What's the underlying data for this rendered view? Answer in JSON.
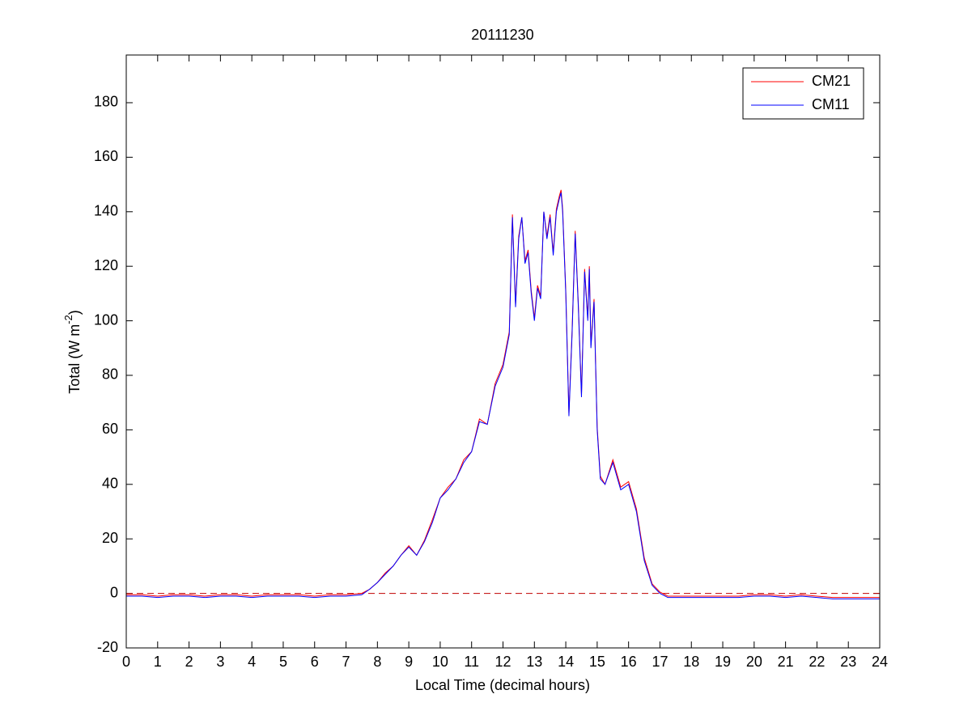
{
  "chart_data": {
    "type": "line",
    "title": "20111230",
    "xlabel": "Local Time (decimal hours)",
    "ylabel": [
      "Total (W m",
      "-2",
      ")"
    ],
    "x": [
      0,
      0.5,
      1,
      1.5,
      2,
      2.5,
      3,
      3.5,
      4,
      4.5,
      5,
      5.5,
      6,
      6.5,
      7,
      7.5,
      7.75,
      8,
      8.25,
      8.5,
      8.75,
      9,
      9.25,
      9.5,
      9.75,
      10,
      10.25,
      10.5,
      10.75,
      11,
      11.25,
      11.5,
      11.75,
      12,
      12.2,
      12.3,
      12.4,
      12.5,
      12.6,
      12.7,
      12.8,
      12.9,
      13,
      13.1,
      13.2,
      13.3,
      13.4,
      13.5,
      13.6,
      13.7,
      13.8,
      13.85,
      13.9,
      14,
      14.1,
      14.2,
      14.3,
      14.4,
      14.5,
      14.6,
      14.7,
      14.75,
      14.8,
      14.9,
      15,
      15.1,
      15.25,
      15.5,
      15.75,
      16,
      16.25,
      16.5,
      16.75,
      17,
      17.25,
      17.5,
      18,
      18.5,
      19,
      19.5,
      20,
      20.5,
      21,
      21.5,
      22,
      22.5,
      23,
      23.5,
      24
    ],
    "series": [
      {
        "name": "CM21",
        "color": "#ff0000",
        "values": [
          -0.5,
          -0.5,
          -1,
          -0.5,
          -0.5,
          -1,
          -0.5,
          -0.5,
          -1,
          -0.5,
          -0.5,
          -0.5,
          -1,
          -0.5,
          -0.5,
          0,
          1.5,
          4,
          7.5,
          10,
          14,
          17.5,
          14,
          19.5,
          27,
          35,
          39,
          42,
          49,
          52,
          64,
          62,
          77,
          84,
          96,
          139,
          106,
          131,
          138,
          122,
          126,
          111,
          101,
          113,
          109,
          140,
          131,
          139,
          125,
          141,
          146,
          148,
          141,
          111,
          66,
          96,
          133,
          106,
          73,
          119,
          101,
          120,
          91,
          108,
          61,
          43,
          40,
          49,
          39,
          41,
          31,
          13,
          3.5,
          0.5,
          -1,
          -1,
          -1,
          -1,
          -1,
          -1,
          -0.5,
          -0.5,
          -1,
          -0.5,
          -1,
          -1.5,
          -1.5,
          -1.5,
          -1.5
        ]
      },
      {
        "name": "CM11",
        "color": "#0000ff",
        "values": [
          -1,
          -1,
          -1.5,
          -1,
          -1,
          -1.5,
          -1,
          -1,
          -1.5,
          -1,
          -1,
          -1,
          -1.5,
          -1,
          -1,
          -0.5,
          1.5,
          4,
          7,
          10,
          14,
          17,
          14,
          19,
          26,
          35,
          38,
          42,
          48,
          52,
          63,
          62,
          76,
          83,
          95,
          138,
          105,
          130,
          138,
          121,
          125,
          110,
          100,
          112,
          108,
          140,
          130,
          138,
          124,
          140,
          145,
          147,
          140,
          110,
          65,
          95,
          132,
          105,
          72,
          118,
          100,
          119,
          90,
          107,
          60,
          42,
          40,
          48,
          38,
          40,
          30,
          12,
          3,
          0,
          -1.5,
          -1.5,
          -1.5,
          -1.5,
          -1.5,
          -1.5,
          -1,
          -1,
          -1.5,
          -1,
          -1.5,
          -2,
          -2,
          -2,
          -2
        ]
      }
    ],
    "xlim": [
      0,
      24
    ],
    "xticks": [
      0,
      1,
      2,
      3,
      4,
      5,
      6,
      7,
      8,
      9,
      10,
      11,
      12,
      13,
      14,
      15,
      16,
      17,
      18,
      19,
      20,
      21,
      22,
      23,
      24
    ],
    "ylim": [
      -20,
      197.5
    ],
    "yticks": [
      -20,
      0,
      20,
      40,
      60,
      80,
      100,
      120,
      140,
      160,
      180
    ],
    "reference_line": {
      "value": 0,
      "color": "#c00000"
    },
    "grid": false,
    "legend": "northeast"
  }
}
